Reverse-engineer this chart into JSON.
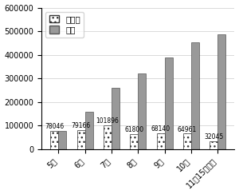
{
  "categories": [
    "5月",
    "6月",
    "7月",
    "8月",
    "9月",
    "10月",
    "11月15日まで"
  ],
  "monthly": [
    78046,
    79166,
    101896,
    61800,
    68140,
    64961,
    32045
  ],
  "cumulative": [
    78046,
    157212,
    259108,
    320908,
    389048,
    454009,
    486054
  ],
  "ylim": [
    0,
    600000
  ],
  "yticks": [
    0,
    100000,
    200000,
    300000,
    400000,
    500000,
    600000
  ],
  "legend_labels": [
    "月ごと",
    "累計"
  ],
  "cumulative_color": "#999999",
  "background_color": "#ffffff",
  "bar_width": 0.3,
  "label_fontsize": 5.5,
  "tick_fontsize": 7,
  "legend_fontsize": 7.5
}
